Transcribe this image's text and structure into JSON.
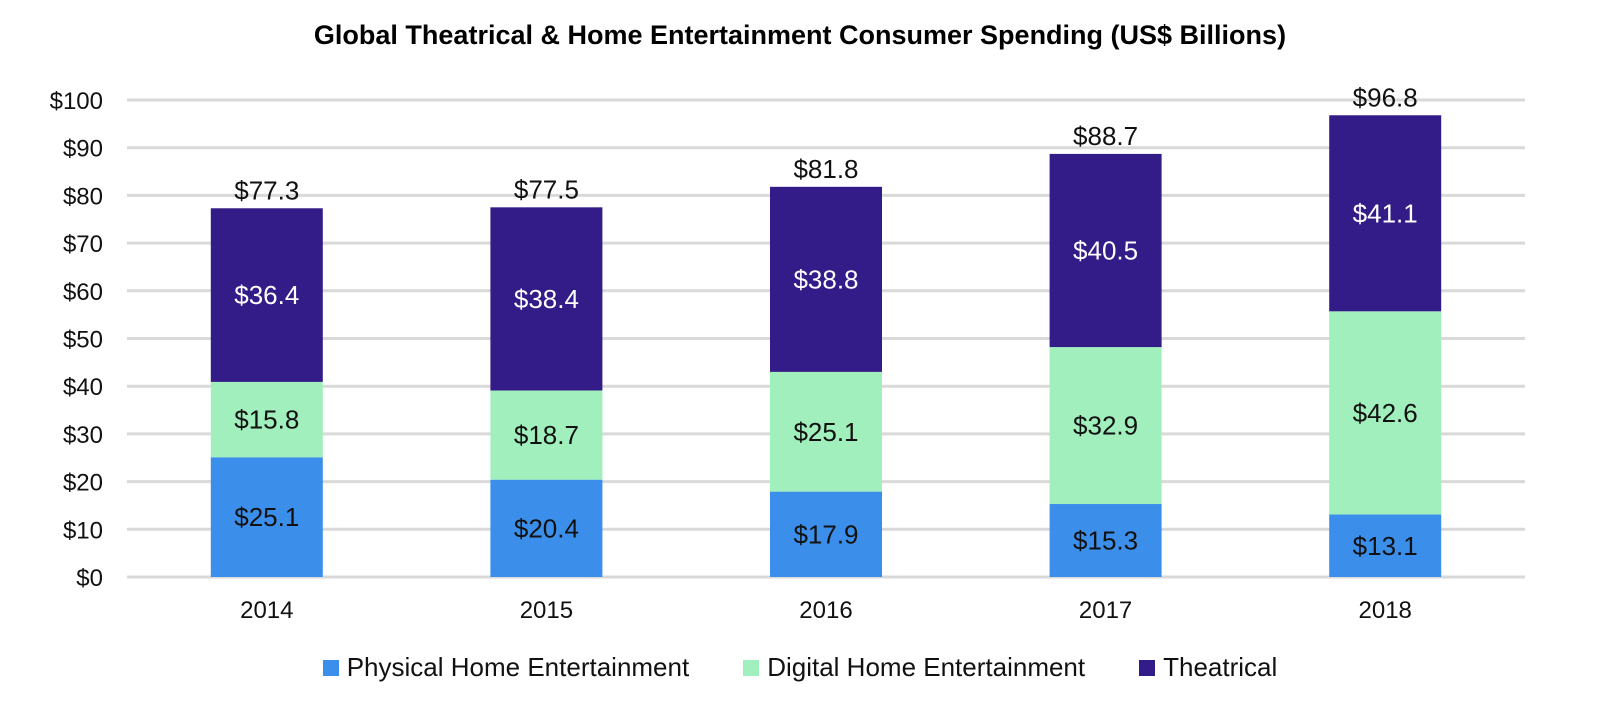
{
  "chart_data": {
    "type": "bar",
    "stacked": true,
    "title": "Global Theatrical & Home Entertainment Consumer Spending (US$ Billions)",
    "xlabel": "",
    "ylabel": "",
    "categories": [
      "2014",
      "2015",
      "2016",
      "2017",
      "2018"
    ],
    "ylim": [
      0,
      100
    ],
    "yticks": [
      0,
      10,
      20,
      30,
      40,
      50,
      60,
      70,
      80,
      90,
      100
    ],
    "ytick_labels": [
      "$0",
      "$10",
      "$20",
      "$30",
      "$40",
      "$50",
      "$60",
      "$70",
      "$80",
      "$90",
      "$100"
    ],
    "grid": true,
    "legend_position": "bottom",
    "series": [
      {
        "name": "Physical Home Entertainment",
        "color": "#3b8fea",
        "label_color": "#111111",
        "values": [
          25.1,
          20.4,
          17.9,
          15.3,
          13.1
        ],
        "labels": [
          "$25.1",
          "$20.4",
          "$17.9",
          "$15.3",
          "$13.1"
        ]
      },
      {
        "name": "Digital Home Entertainment",
        "color": "#a0efbc",
        "label_color": "#111111",
        "values": [
          15.8,
          18.7,
          25.1,
          32.9,
          42.6
        ],
        "labels": [
          "$15.8",
          "$18.7",
          "$25.1",
          "$32.9",
          "$42.6"
        ]
      },
      {
        "name": "Theatrical",
        "color": "#331b88",
        "label_color": "#ffffff",
        "values": [
          36.4,
          38.4,
          38.8,
          40.5,
          41.1
        ],
        "labels": [
          "$36.4",
          "$38.4",
          "$38.8",
          "$40.5",
          "$41.1"
        ]
      }
    ],
    "totals": [
      77.3,
      77.5,
      81.8,
      88.7,
      96.8
    ],
    "total_labels": [
      "$77.3",
      "$77.5",
      "$81.8",
      "$88.7",
      "$96.8"
    ]
  }
}
